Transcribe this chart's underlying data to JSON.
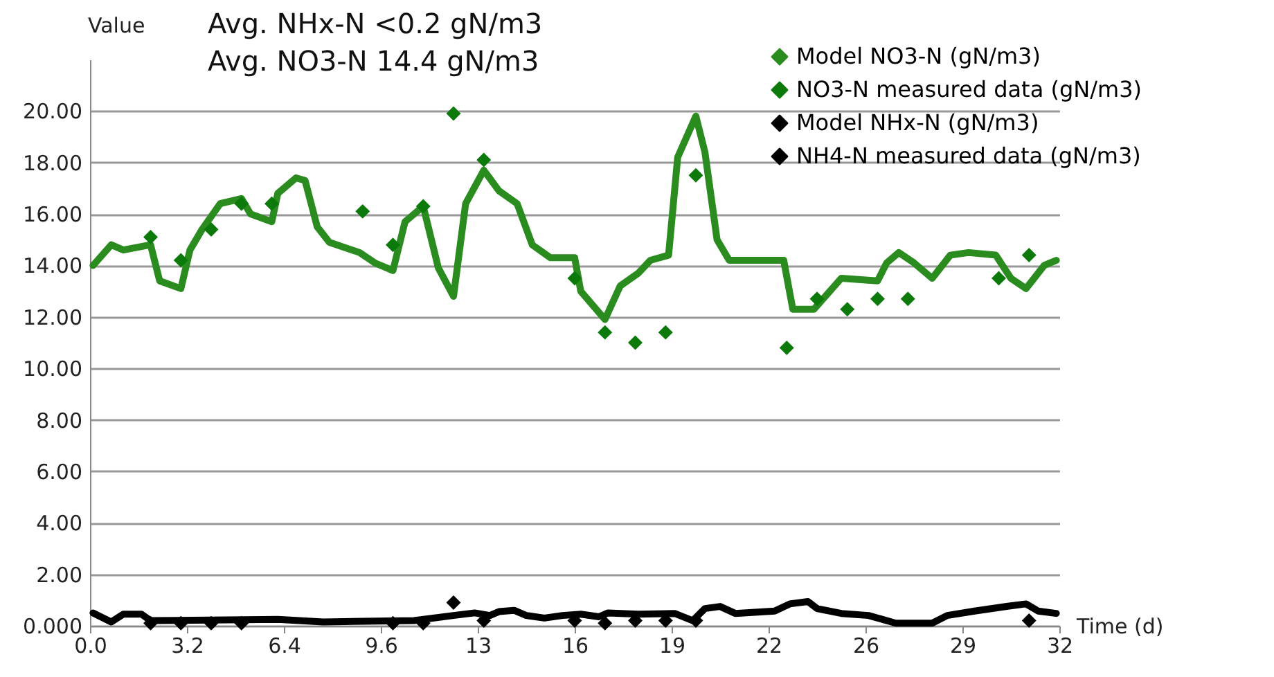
{
  "chart_data": {
    "type": "line",
    "xlabel": "Time (d)",
    "ylabel": "Value",
    "annotations": [
      "Avg. NHx-N <0.2 gN/m3",
      "Avg. NO3-N 14.4  gN/m3"
    ],
    "xlim": [
      0,
      32
    ],
    "xticks": [
      {
        "value": 0,
        "label": "0.0"
      },
      {
        "value": 3.2,
        "label": "3.2"
      },
      {
        "value": 6.4,
        "label": "6.4"
      },
      {
        "value": 9.6,
        "label": "9.6"
      },
      {
        "value": 12.8,
        "label": "13"
      },
      {
        "value": 16,
        "label": "16"
      },
      {
        "value": 19.2,
        "label": "19"
      },
      {
        "value": 22.4,
        "label": "22"
      },
      {
        "value": 25.6,
        "label": "26"
      },
      {
        "value": 28.8,
        "label": "29"
      },
      {
        "value": 32,
        "label": "32"
      }
    ],
    "ylim": [
      0,
      22
    ],
    "yticks": [
      {
        "value": 0,
        "label": "0.000"
      },
      {
        "value": 2,
        "label": "2.00"
      },
      {
        "value": 4,
        "label": "4.00"
      },
      {
        "value": 6,
        "label": "6.00"
      },
      {
        "value": 8,
        "label": "8.00"
      },
      {
        "value": 10,
        "label": "10.00"
      },
      {
        "value": 12,
        "label": "12.00"
      },
      {
        "value": 14,
        "label": "14.00"
      },
      {
        "value": 16,
        "label": "16.00"
      },
      {
        "value": 18,
        "label": "18.00"
      },
      {
        "value": 20,
        "label": "20.00"
      }
    ],
    "grid": "y",
    "legend": "right",
    "series": [
      {
        "name": "Model NO3-N (gN/m3)",
        "marker": "none",
        "color": "#2a8c1f",
        "x": [
          0.1,
          0.7,
          1.1,
          2.0,
          2.3,
          3.0,
          3.3,
          3.7,
          4.3,
          5.0,
          5.3,
          6.0,
          6.2,
          6.8,
          7.1,
          7.5,
          7.9,
          8.9,
          9.4,
          10.0,
          10.4,
          11.0,
          11.5,
          12.0,
          12.4,
          13.0,
          13.5,
          14.1,
          14.6,
          15.2,
          16.0,
          16.2,
          17.0,
          17.5,
          18.1,
          18.5,
          19.1,
          19.4,
          20.0,
          20.3,
          20.7,
          21.1,
          22.9,
          23.2,
          23.9,
          24.8,
          26.0,
          26.3,
          26.7,
          27.2,
          27.8,
          28.4,
          29.0,
          29.9,
          30.4,
          30.9,
          31.5,
          31.9
        ],
        "values": [
          14.0,
          14.8,
          14.6,
          14.8,
          13.4,
          13.1,
          14.6,
          15.4,
          16.4,
          16.6,
          16.0,
          15.7,
          16.8,
          17.4,
          17.3,
          15.5,
          14.9,
          14.5,
          14.1,
          13.8,
          15.7,
          16.3,
          13.9,
          12.8,
          16.4,
          17.7,
          16.9,
          16.4,
          14.8,
          14.3,
          14.3,
          13.0,
          11.9,
          13.2,
          13.7,
          14.2,
          14.4,
          18.2,
          19.8,
          18.4,
          15.0,
          14.2,
          14.2,
          12.3,
          12.3,
          13.5,
          13.4,
          14.1,
          14.5,
          14.1,
          13.5,
          14.4,
          14.5,
          14.4,
          13.5,
          13.1,
          14.0,
          14.2
        ]
      },
      {
        "name": "NO3-N measured data (gN/m3)",
        "type": "scatter",
        "marker": "diamond",
        "color": "#0b7a0b",
        "x": [
          2,
          3,
          4,
          5,
          6,
          9,
          10,
          11,
          12,
          13,
          16,
          17,
          18,
          19,
          20,
          23,
          24,
          25,
          26,
          27,
          30,
          31
        ],
        "values": [
          15.1,
          14.2,
          15.4,
          16.4,
          16.4,
          16.1,
          14.8,
          16.3,
          19.9,
          18.1,
          13.5,
          11.4,
          11.0,
          11.4,
          17.5,
          10.8,
          12.7,
          12.3,
          12.7,
          12.7,
          13.5,
          14.4
        ]
      },
      {
        "name": "Model NHx-N (gN/m3)",
        "marker": "none",
        "color": "#000000",
        "x": [
          0.1,
          0.7,
          1.1,
          1.7,
          2.0,
          6.2,
          7.7,
          10.7,
          12.0,
          12.7,
          13.2,
          13.5,
          14.0,
          14.4,
          15.0,
          15.6,
          16.2,
          16.8,
          17.1,
          18.1,
          19.3,
          19.9,
          20.3,
          20.8,
          21.3,
          22.6,
          23.1,
          23.7,
          24.0,
          24.8,
          25.7,
          26.6,
          27.8,
          28.3,
          29.2,
          30.3,
          30.9,
          31.3,
          31.9
        ],
        "values": [
          0.5,
          0.15,
          0.45,
          0.45,
          0.2,
          0.25,
          0.15,
          0.2,
          0.4,
          0.5,
          0.4,
          0.55,
          0.6,
          0.4,
          0.3,
          0.4,
          0.45,
          0.35,
          0.5,
          0.45,
          0.48,
          0.2,
          0.67,
          0.75,
          0.48,
          0.57,
          0.85,
          0.94,
          0.67,
          0.48,
          0.4,
          0.1,
          0.1,
          0.4,
          0.57,
          0.76,
          0.85,
          0.57,
          0.48
        ]
      },
      {
        "name": "NH4-N measured data (gN/m3)",
        "type": "scatter",
        "marker": "diamond",
        "color": "#000000",
        "x": [
          2,
          3,
          4,
          5,
          10,
          11,
          12,
          13,
          16,
          17,
          18,
          19,
          20,
          31
        ],
        "values": [
          0.1,
          0.1,
          0.1,
          0.1,
          0.1,
          0.1,
          0.9,
          0.2,
          0.2,
          0.1,
          0.2,
          0.2,
          0.2,
          0.2
        ]
      }
    ]
  }
}
